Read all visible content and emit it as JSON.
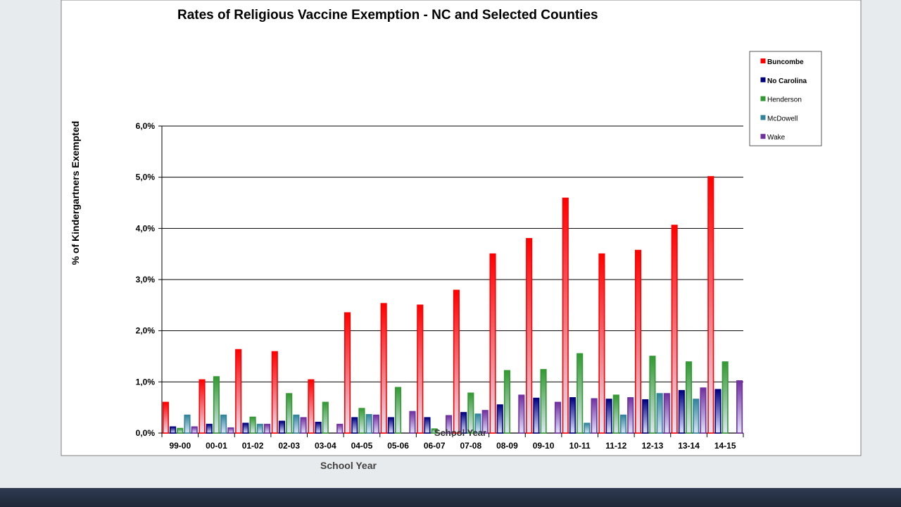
{
  "chart_data": {
    "type": "bar",
    "title": "Rates of Religious Vaccine Exemption - NC and Selected Counties",
    "ylabel": "% of Kindergartners Exempted",
    "xlabel": "School Year",
    "inner_label": "School Year",
    "ylim": [
      0,
      6
    ],
    "yticks": [
      "0,0%",
      "1,0%",
      "2,0%",
      "3,0%",
      "4,0%",
      "5,0%",
      "6,0%"
    ],
    "grid": true,
    "legend_position": "top-right",
    "categories": [
      "99-00",
      "00-01",
      "01-02",
      "02-03",
      "03-04",
      "04-05",
      "05-06",
      "06-07",
      "07-08",
      "08-09",
      "09-10",
      "10-11",
      "11-12",
      "12-13",
      "13-14",
      "14-15"
    ],
    "series": [
      {
        "name": "Buncombe",
        "color": "#ff0000",
        "values": [
          0.6,
          1.04,
          1.63,
          1.59,
          1.04,
          2.35,
          2.53,
          2.5,
          2.79,
          3.5,
          3.8,
          4.59,
          3.5,
          3.57,
          4.06,
          5.01
        ]
      },
      {
        "name": "No Carolina",
        "color": "#000080",
        "values": [
          0.12,
          0.17,
          0.19,
          0.23,
          0.21,
          0.3,
          0.3,
          0.3,
          0.4,
          0.55,
          0.68,
          0.69,
          0.66,
          0.65,
          0.83,
          0.85
        ]
      },
      {
        "name": "Henderson",
        "color": "#339933",
        "values": [
          0.09,
          1.1,
          0.31,
          0.77,
          0.6,
          0.48,
          0.89,
          0.08,
          0.78,
          1.22,
          1.24,
          1.55,
          0.74,
          1.5,
          1.39,
          1.39
        ]
      },
      {
        "name": "McDowell",
        "color": "#31849b",
        "values": [
          0.35,
          0.35,
          0.17,
          0.35,
          0,
          0.36,
          0,
          0,
          0.37,
          0,
          0,
          0.19,
          0.35,
          0.77,
          0.66,
          0
        ]
      },
      {
        "name": "Wake",
        "color": "#7030a0",
        "values": [
          0.12,
          0.1,
          0.17,
          0.3,
          0.17,
          0.35,
          0.42,
          0.34,
          0.44,
          0.74,
          0.6,
          0.67,
          0.69,
          0.77,
          0.88,
          1.02
        ]
      }
    ]
  }
}
